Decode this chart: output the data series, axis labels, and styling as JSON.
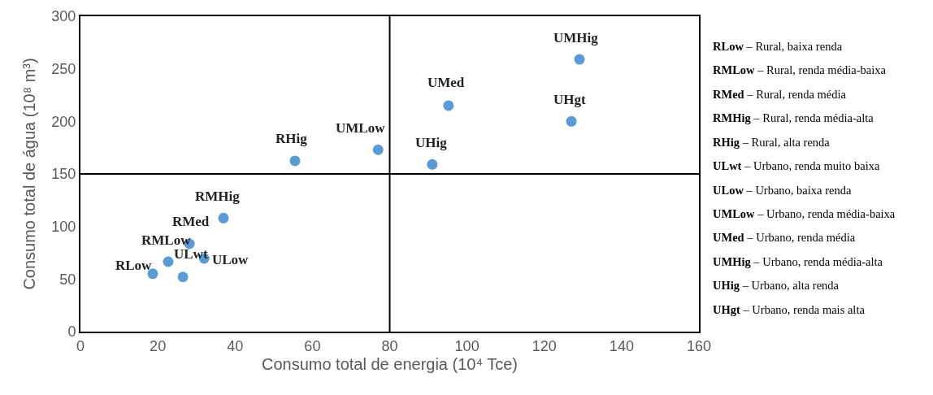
{
  "chart_data": {
    "type": "scatter",
    "xlabel": "Consumo total de energia (10⁴ Tce)",
    "ylabel": "Consumo total de água (10⁸ m³)",
    "x": [
      18.7,
      22.7,
      28.2,
      37,
      55.5,
      26.5,
      32,
      77,
      95.2,
      129.1,
      91,
      127
    ],
    "series": [
      {
        "color": "#5b9bd5",
        "values": [
          55,
          66.5,
          83.5,
          108,
          162.4,
          52,
          69.6,
          173,
          215,
          259,
          159,
          200
        ]
      }
    ],
    "xlim": [
      0,
      160
    ],
    "xticks": [
      0,
      20,
      40,
      60,
      80,
      100,
      120,
      140,
      160
    ],
    "ylim": [
      0,
      300
    ],
    "yticks": [
      0,
      50,
      100,
      150,
      200,
      250,
      300
    ],
    "grid": false,
    "marker": "circle",
    "ref_lines": [
      {
        "axis": "x",
        "value": 80,
        "color": "#000000"
      },
      {
        "axis": "y",
        "value": 150,
        "color": "#000000"
      }
    ],
    "annotations": [
      {
        "text": "RLow",
        "x": 18.7,
        "y": 55
      },
      {
        "text": "RMLow",
        "x": 22.7,
        "y": 66.5
      },
      {
        "text": "RMed",
        "x": 28.2,
        "y": 83.5
      },
      {
        "text": "RMHig",
        "x": 37,
        "y": 108
      },
      {
        "text": "RHig",
        "x": 55.5,
        "y": 162.4
      },
      {
        "text": "ULwt",
        "x": 26.5,
        "y": 52
      },
      {
        "text": "ULow",
        "x": 32,
        "y": 69.6
      },
      {
        "text": "UMLow",
        "x": 77,
        "y": 173
      },
      {
        "text": "UMed",
        "x": 95.2,
        "y": 215
      },
      {
        "text": "UMHig",
        "x": 129.1,
        "y": 259
      },
      {
        "text": "UHig",
        "x": 91,
        "y": 159
      },
      {
        "text": "UHgt",
        "x": 127,
        "y": 200
      },
      "RLow – Rural, baixa renda",
      "RMLow – Rural, renda média-baixa",
      "RMed – Rural, renda média",
      "RMHig – Rural, renda média-alta",
      "RHig – Rural, alta renda",
      "ULwt – Urbano, renda muito baixa",
      "ULow – Urbano, baixa renda",
      "UMLow – Urbano, renda média-baixa",
      "UMed – Urbano, renda média",
      "UMHig – Urbano, renda média-alta",
      "UHig – Urbano, alta renda",
      "UHgt – Urbano, renda mais alta"
    ]
  }
}
